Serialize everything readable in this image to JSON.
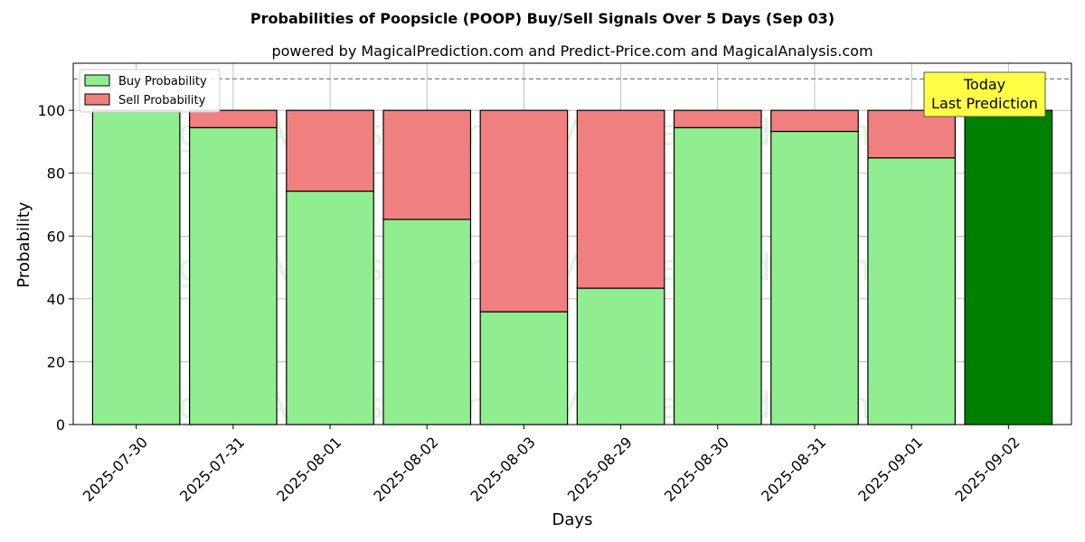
{
  "chart_data": {
    "type": "bar",
    "stacked": true,
    "title": "Probabilities of Poopsicle (POOP) Buy/Sell Signals Over 5 Days (Sep 03)",
    "subtitle": "powered by MagicalPrediction.com and Predict-Price.com and MagicalAnalysis.com",
    "xlabel": "Days",
    "ylabel": "Probability",
    "ylim": [
      0,
      115
    ],
    "yticks": [
      0,
      20,
      40,
      60,
      80,
      100
    ],
    "grid": true,
    "legend_position": "top-left",
    "reference_line": 110,
    "categories": [
      "2025-07-30",
      "2025-07-31",
      "2025-08-01",
      "2025-08-02",
      "2025-08-03",
      "2025-08-29",
      "2025-08-30",
      "2025-08-31",
      "2025-09-01",
      "2025-09-02"
    ],
    "series": [
      {
        "name": "Buy Probability",
        "color": "#90ee90",
        "values": [
          100,
          94.5,
          74.3,
          65.3,
          35.9,
          43.4,
          94.5,
          93.3,
          84.9,
          100
        ]
      },
      {
        "name": "Sell Probability",
        "color": "#f08080",
        "values": [
          0,
          5.5,
          25.7,
          34.7,
          64.1,
          56.6,
          5.5,
          6.7,
          15.1,
          0
        ]
      }
    ],
    "highlight": {
      "index": 9,
      "color": "#008000"
    },
    "annotation": {
      "line1": "Today",
      "line2": "Last Prediction",
      "bg": "#ffff44"
    },
    "watermarks": [
      "MagicalAnalysis.com",
      "MagicalPrediction.com"
    ]
  }
}
